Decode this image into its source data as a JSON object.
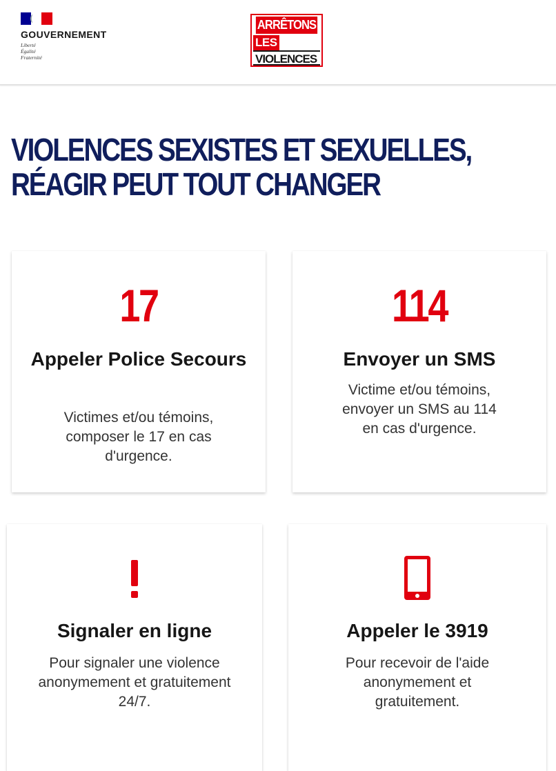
{
  "header": {
    "gov_name": "GOUVERNEMENT",
    "motto": [
      "Liberté",
      "Égalité",
      "Fraternité"
    ],
    "campaign": [
      "ARRÊTONS",
      "LES",
      "VIOLENCES"
    ]
  },
  "title": {
    "line1": "VIOLENCES SEXISTES ET SEXUELLES,",
    "line2": "RÉAGIR PEUT TOUT CHANGER"
  },
  "cards": [
    {
      "number": "17",
      "title": "Appeler Police Secours",
      "description": "Victimes et/ou témoins, composer le 17 en cas d'urgence."
    },
    {
      "number": "114",
      "title": "Envoyer un SMS",
      "description": "Victime et/ou témoins, envoyer un SMS au 114 en cas d'urgence."
    },
    {
      "icon": "exclamation-icon",
      "title": "Signaler en ligne",
      "description": "Pour signaler une violence anonymement et gratuitement 24/7."
    },
    {
      "icon": "mobile-phone-icon",
      "title": "Appeler le 3919",
      "description": "Pour recevoir de l'aide anonymement et gratuitement."
    }
  ],
  "colors": {
    "accent_red": "#e1000f",
    "title_blue": "#101e5c",
    "flag_blue": "#000091"
  }
}
